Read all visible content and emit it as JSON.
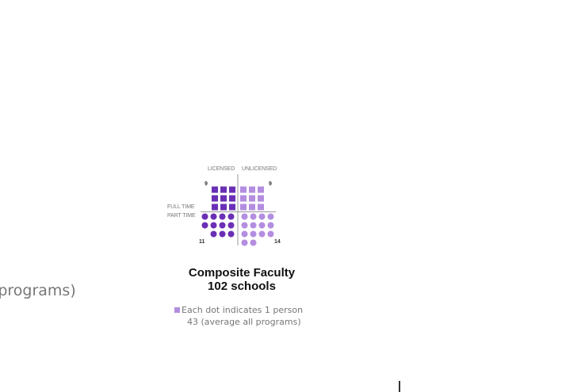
{
  "left_fragment": "l programs)",
  "chart_data": {
    "type": "dot-matrix",
    "title": "Composite Faculty",
    "subtitle": "102 schools",
    "column_labels": [
      "LICENSED",
      "UNLICENSED"
    ],
    "row_labels": [
      "FULL TIME",
      "PART TIME"
    ],
    "quadrants": {
      "full_time_licensed": 9,
      "full_time_unlicensed": 9,
      "part_time_licensed": 11,
      "part_time_unlicensed": 14
    },
    "legend": "Each dot indicates 1 person",
    "average_note": "43 (average all programs)",
    "colors": {
      "licensed": "#6a2fb5",
      "unlicensed": "#b38ee0",
      "axis": "#9a9a9a"
    }
  }
}
